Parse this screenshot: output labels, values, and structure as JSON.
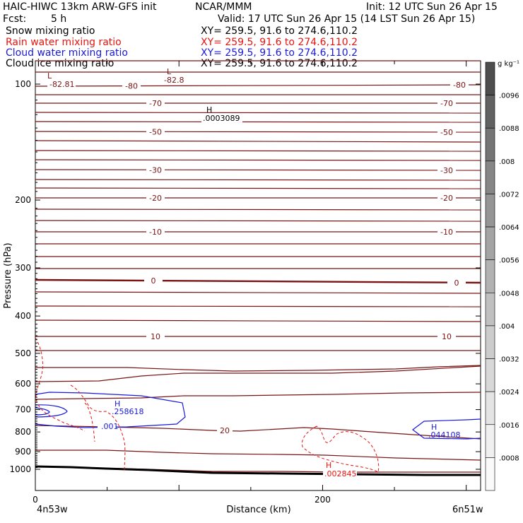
{
  "header": {
    "title": "HAIC-HIWC 13km ARW-GFS init",
    "org": "NCAR/MMM",
    "init": "Init: 12 UTC Sun 26 Apr 15",
    "fcst_label": "Fcst:",
    "fcst_value": "5 h",
    "valid": "Valid: 17 UTC Sun 26 Apr 15 (14 LST Sun 26 Apr 15)"
  },
  "fields": [
    {
      "name": "Snow mixing ratio",
      "xy": "XY= 259.5, 91.6 to 274.6,110.2",
      "color": "#000000"
    },
    {
      "name": "Rain water mixing ratio",
      "xy": "XY= 259.5, 91.6 to 274.6,110.2",
      "color": "#e8140f"
    },
    {
      "name": "Cloud water mixing ratio",
      "xy": "XY= 259.5, 91.6 to 274.6,110.2",
      "color": "#1a1adc"
    },
    {
      "name": "Cloud ice mixing ratio",
      "xy": "XY= 259.5, 91.6 to 274.6,110.2",
      "color": "#000000"
    }
  ],
  "colors": {
    "temperature": "#7a1414",
    "rain": "#e8140f",
    "cloud_water": "#1a1adc",
    "terrain": "#000000"
  },
  "chart_data": {
    "type": "cross-section",
    "ylabel": "Pressure (hPa)",
    "xlabel": "Distance (km)",
    "y_scale": "log",
    "ylim": [
      1060,
      80
    ],
    "xlim": [
      0,
      310
    ],
    "x_ticks": [
      0,
      200
    ],
    "y_ticks": [
      100,
      200,
      300,
      400,
      500,
      600,
      700,
      800,
      900,
      1000
    ],
    "endpoints": {
      "left": "4n53w",
      "right": "6n51w"
    },
    "colorbar": {
      "unit": "g kg⁻¹",
      "ticks": [
        ".0008",
        ".0016",
        ".0024",
        ".0032",
        ".004",
        ".0048",
        ".0056",
        ".0064",
        ".0072",
        ".008",
        ".0088",
        ".0096"
      ],
      "shades": [
        "#fafafa",
        "#f0f0f0",
        "#e4e4e4",
        "#d8d8d8",
        "#cccccc",
        "#c0c0c0",
        "#b2b2b2",
        "#a4a4a4",
        "#959595",
        "#868686",
        "#757575",
        "#626262",
        "#4e4e4e"
      ]
    },
    "temperature_contour_labels": [
      "-80",
      "-70",
      "-50",
      "-30",
      "-20",
      "-10",
      "0",
      "10",
      "20"
    ],
    "extrema": [
      {
        "kind": "L",
        "value": "-82.81",
        "field": "temperature"
      },
      {
        "kind": "L",
        "value": "-82.8",
        "field": "temperature"
      },
      {
        "kind": "H",
        "value": ".0003089",
        "field": "cloud ice"
      },
      {
        "kind": "H",
        "value": ".258618",
        "field": "cloud water"
      },
      {
        "kind": "H",
        "value": ".044108",
        "field": "cloud water"
      },
      {
        "kind": "H",
        "value": ".002845",
        "field": "rain water"
      }
    ],
    "cloud_water_contour_label": ".001",
    "temperature_isotherms": [
      {
        "label": "-80",
        "y": [
          86,
          86
        ]
      },
      {
        "label": "-80",
        "y": [
          102,
          102
        ]
      },
      {
        "label": "-80",
        "y": [
          122,
          120
        ]
      },
      {
        "label": "",
        "y": [
          134,
          134
        ]
      },
      {
        "label": "-70",
        "y": [
          146,
          146
        ]
      },
      {
        "label": "",
        "y": [
          159,
          160
        ]
      },
      {
        "label": "",
        "y": [
          172,
          173
        ]
      },
      {
        "label": "-50",
        "y": [
          186,
          187
        ]
      },
      {
        "label": "",
        "y": [
          199,
          201
        ]
      },
      {
        "label": "",
        "y": [
          213,
          214
        ]
      },
      {
        "label": "",
        "y": [
          226,
          227
        ]
      },
      {
        "label": "-30",
        "y": [
          240,
          241
        ]
      },
      {
        "label": "",
        "y": [
          254,
          255
        ]
      },
      {
        "label": "",
        "y": [
          266,
          267
        ]
      },
      {
        "label": "-20",
        "y": [
          280,
          280
        ]
      },
      {
        "label": "",
        "y": [
          296,
          297
        ]
      },
      {
        "label": "",
        "y": [
          312,
          313
        ]
      },
      {
        "label": "-10",
        "y": [
          328,
          328
        ]
      },
      {
        "label": "",
        "y": [
          345,
          345
        ]
      },
      {
        "label": "",
        "y": [
          363,
          363
        ]
      },
      {
        "label": "",
        "y": [
          380,
          380
        ]
      },
      {
        "label": "0",
        "y": [
          396,
          400
        ]
      },
      {
        "label": "",
        "y": [
          413,
          415
        ]
      },
      {
        "label": "",
        "y": [
          433,
          434
        ]
      },
      {
        "label": "",
        "y": [
          453,
          455
        ]
      },
      {
        "label": "10",
        "y": [
          476,
          476
        ]
      },
      {
        "label": "",
        "y": [
          496,
          496
        ]
      }
    ]
  }
}
